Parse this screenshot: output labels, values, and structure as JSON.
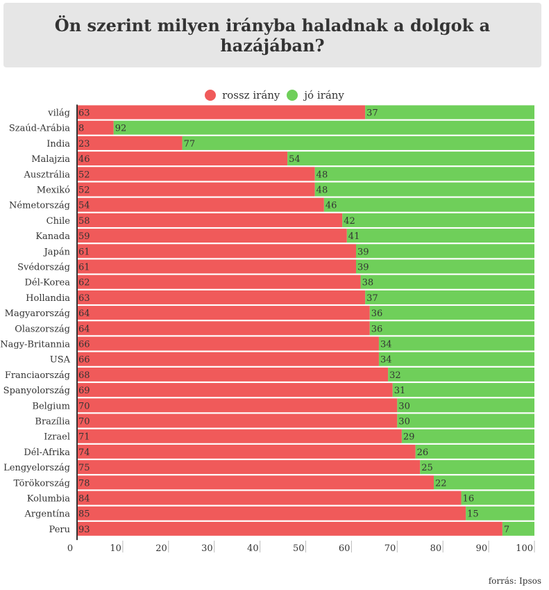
{
  "title": "Ön szerint milyen irányba haladnak a dolgok a hazájában?",
  "source": "forrás: Ipsos",
  "colors": {
    "rossz": "#f05a5a",
    "jo": "#6fcf5a"
  },
  "chart_data": {
    "type": "bar",
    "orientation": "horizontal",
    "stacked": true,
    "title": "Ön szerint milyen irányba haladnak a dolgok a hazájában?",
    "legend_position": "top",
    "xlim": [
      0,
      100
    ],
    "x_ticks": [
      0,
      10,
      20,
      30,
      40,
      50,
      60,
      70,
      80,
      90,
      100
    ],
    "categories": [
      "világ",
      "Szaúd-Arábia",
      "India",
      "Malajzia",
      "Ausztrália",
      "Mexikó",
      "Németország",
      "Chile",
      "Kanada",
      "Japán",
      "Svédország",
      "Dél-Korea",
      "Hollandia",
      "Magyarország",
      "Olaszország",
      "Nagy-Britannia",
      "USA",
      "Franciaország",
      "Spanyolország",
      "Belgium",
      "Brazília",
      "Izrael",
      "Dél-Afrika",
      "Lengyelország",
      "Törökország",
      "Kolumbia",
      "Argentína",
      "Peru"
    ],
    "series": [
      {
        "name": "rossz irány",
        "values": [
          63,
          8,
          23,
          46,
          52,
          52,
          54,
          58,
          59,
          61,
          61,
          62,
          63,
          64,
          64,
          66,
          66,
          68,
          69,
          70,
          70,
          71,
          74,
          75,
          78,
          84,
          85,
          93
        ]
      },
      {
        "name": "jó irány",
        "values": [
          37,
          92,
          77,
          54,
          48,
          48,
          46,
          42,
          41,
          39,
          39,
          38,
          37,
          36,
          36,
          34,
          34,
          32,
          31,
          30,
          30,
          29,
          26,
          25,
          22,
          16,
          15,
          7
        ]
      }
    ]
  }
}
